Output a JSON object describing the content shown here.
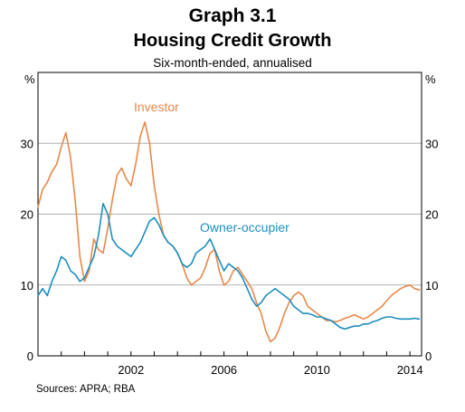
{
  "header": {
    "graph_number": "Graph 3.1",
    "title": "Housing Credit Growth",
    "subtitle": "Six-month-ended, annualised"
  },
  "source": "Sources:  APRA; RBA",
  "colors": {
    "investor": "#e8884a",
    "owner_occupier": "#1c8fbe"
  },
  "chart_data": {
    "type": "line",
    "title": "Housing Credit Growth",
    "subtitle": "Six-month-ended, annualised",
    "ylabel_left": "%",
    "ylabel_right": "%",
    "ylim": [
      0,
      40
    ],
    "xlim": [
      1998.0,
      2014.5
    ],
    "x_ticks": [
      2002,
      2006,
      2010,
      2014
    ],
    "y_ticks": [
      0,
      10,
      20,
      30
    ],
    "grid": true,
    "series": [
      {
        "name": "Investor",
        "color": "#e8884a",
        "x": [
          1998.0,
          1998.2,
          1998.4,
          1998.6,
          1998.8,
          1999.0,
          1999.2,
          1999.4,
          1999.6,
          1999.8,
          2000.0,
          2000.2,
          2000.4,
          2000.6,
          2000.8,
          2001.0,
          2001.2,
          2001.4,
          2001.6,
          2001.8,
          2002.0,
          2002.2,
          2002.4,
          2002.6,
          2002.8,
          2003.0,
          2003.2,
          2003.4,
          2003.6,
          2003.8,
          2004.0,
          2004.2,
          2004.4,
          2004.6,
          2004.8,
          2005.0,
          2005.2,
          2005.4,
          2005.6,
          2005.8,
          2006.0,
          2006.2,
          2006.4,
          2006.6,
          2006.8,
          2007.0,
          2007.2,
          2007.4,
          2007.6,
          2007.8,
          2008.0,
          2008.2,
          2008.4,
          2008.6,
          2008.8,
          2009.0,
          2009.2,
          2009.4,
          2009.6,
          2009.8,
          2010.0,
          2010.2,
          2010.4,
          2010.6,
          2010.8,
          2011.0,
          2011.2,
          2011.4,
          2011.6,
          2011.8,
          2012.0,
          2012.2,
          2012.4,
          2012.6,
          2012.8,
          2013.0,
          2013.2,
          2013.4,
          2013.6,
          2013.8,
          2014.0,
          2014.2,
          2014.4
        ],
        "values": [
          21.0,
          23.5,
          24.5,
          26.0,
          27.0,
          29.5,
          31.5,
          28.0,
          22.0,
          14.0,
          10.5,
          12.0,
          16.5,
          15.0,
          14.5,
          18.0,
          22.0,
          25.5,
          26.5,
          25.0,
          24.0,
          27.0,
          31.0,
          33.0,
          30.0,
          24.0,
          20.0,
          17.0,
          16.0,
          15.5,
          14.5,
          13.0,
          11.0,
          10.0,
          10.5,
          11.0,
          12.5,
          14.5,
          15.0,
          12.0,
          10.0,
          10.5,
          12.0,
          12.5,
          11.5,
          10.5,
          9.5,
          7.5,
          6.0,
          3.5,
          2.0,
          2.5,
          4.0,
          6.0,
          7.5,
          8.5,
          9.0,
          8.5,
          7.0,
          6.5,
          6.0,
          5.5,
          5.0,
          5.0,
          4.8,
          5.0,
          5.3,
          5.5,
          5.8,
          5.5,
          5.2,
          5.5,
          6.0,
          6.5,
          7.0,
          7.8,
          8.5,
          9.0,
          9.5,
          9.8,
          10.0,
          9.5,
          9.3
        ],
        "comment": "approximate readings"
      },
      {
        "name": "Owner-occupier",
        "color": "#1c8fbe",
        "x": [
          1998.0,
          1998.2,
          1998.4,
          1998.6,
          1998.8,
          1999.0,
          1999.2,
          1999.4,
          1999.6,
          1999.8,
          2000.0,
          2000.2,
          2000.4,
          2000.6,
          2000.8,
          2001.0,
          2001.2,
          2001.4,
          2001.6,
          2001.8,
          2002.0,
          2002.2,
          2002.4,
          2002.6,
          2002.8,
          2003.0,
          2003.2,
          2003.4,
          2003.6,
          2003.8,
          2004.0,
          2004.2,
          2004.4,
          2004.6,
          2004.8,
          2005.0,
          2005.2,
          2005.4,
          2005.6,
          2005.8,
          2006.0,
          2006.2,
          2006.4,
          2006.6,
          2006.8,
          2007.0,
          2007.2,
          2007.4,
          2007.6,
          2007.8,
          2008.0,
          2008.2,
          2008.4,
          2008.6,
          2008.8,
          2009.0,
          2009.2,
          2009.4,
          2009.6,
          2009.8,
          2010.0,
          2010.2,
          2010.4,
          2010.6,
          2010.8,
          2011.0,
          2011.2,
          2011.4,
          2011.6,
          2011.8,
          2012.0,
          2012.2,
          2012.4,
          2012.6,
          2012.8,
          2013.0,
          2013.2,
          2013.4,
          2013.6,
          2013.8,
          2014.0,
          2014.2,
          2014.4
        ],
        "values": [
          8.5,
          9.5,
          8.5,
          10.5,
          12.0,
          14.0,
          13.5,
          12.0,
          11.5,
          10.5,
          11.0,
          12.5,
          14.0,
          17.0,
          21.5,
          20.0,
          16.5,
          15.5,
          15.0,
          14.5,
          14.0,
          15.0,
          16.0,
          17.5,
          19.0,
          19.5,
          18.5,
          17.0,
          16.0,
          15.5,
          14.5,
          13.0,
          12.5,
          13.0,
          14.5,
          15.0,
          15.5,
          16.5,
          15.0,
          13.5,
          12.0,
          13.0,
          12.5,
          12.0,
          11.0,
          9.5,
          8.0,
          7.0,
          7.5,
          8.5,
          9.0,
          9.5,
          9.0,
          8.5,
          8.0,
          7.0,
          6.5,
          6.0,
          6.0,
          5.8,
          5.5,
          5.5,
          5.2,
          5.0,
          4.5,
          4.0,
          3.8,
          4.0,
          4.2,
          4.2,
          4.5,
          4.5,
          4.8,
          5.0,
          5.3,
          5.5,
          5.5,
          5.3,
          5.2,
          5.2,
          5.2,
          5.3,
          5.2
        ],
        "comment": "approximate readings"
      }
    ]
  }
}
